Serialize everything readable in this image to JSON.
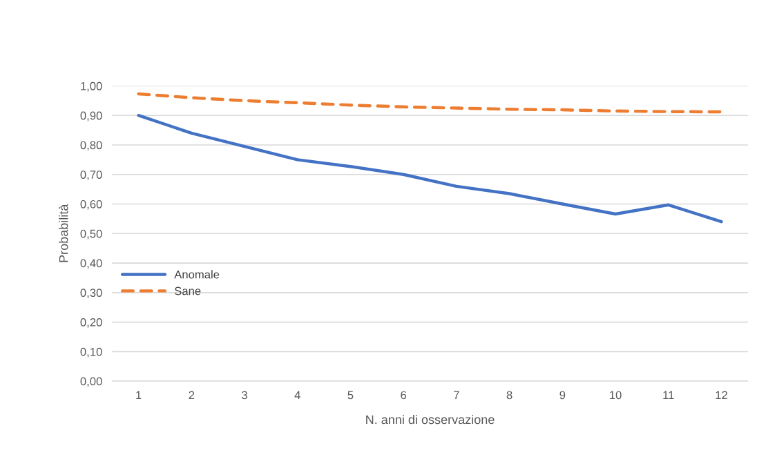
{
  "chart_data": {
    "type": "line",
    "xlabel": "N. anni di osservazione",
    "ylabel": "Probabilità",
    "categories": [
      "1",
      "2",
      "3",
      "4",
      "5",
      "6",
      "7",
      "8",
      "9",
      "10",
      "11",
      "12"
    ],
    "series": [
      {
        "name": "Anomale",
        "color": "#4472c4",
        "line_style": "solid",
        "values": [
          0.9,
          0.84,
          0.795,
          0.75,
          0.727,
          0.7,
          0.66,
          0.635,
          0.6,
          0.566,
          0.597,
          0.54
        ]
      },
      {
        "name": "Sane",
        "color": "#ed7d31",
        "line_style": "dashed",
        "values": [
          0.973,
          0.96,
          0.95,
          0.943,
          0.935,
          0.929,
          0.925,
          0.921,
          0.919,
          0.915,
          0.913,
          0.912
        ]
      }
    ],
    "ylim": [
      0,
      1
    ],
    "yticks": [
      {
        "value": 0,
        "label": "0,00"
      },
      {
        "value": 0.1,
        "label": "0,10"
      },
      {
        "value": 0.2,
        "label": "0,20"
      },
      {
        "value": 0.3,
        "label": "0,30"
      },
      {
        "value": 0.4,
        "label": "0,40"
      },
      {
        "value": 0.5,
        "label": "0,50"
      },
      {
        "value": 0.6,
        "label": "0,60"
      },
      {
        "value": 0.7,
        "label": "0,70"
      },
      {
        "value": 0.8,
        "label": "0,80"
      },
      {
        "value": 0.9,
        "label": "0,90"
      },
      {
        "value": 1.0,
        "label": "1,00"
      }
    ],
    "grid": "y",
    "legend": "left",
    "marker": "none"
  }
}
